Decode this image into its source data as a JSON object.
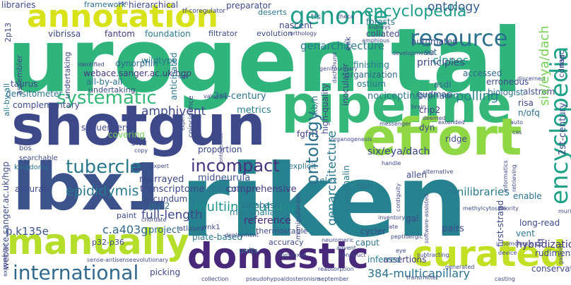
{
  "words": [
    {
      "text": "urogenital",
      "color": "#2fb47c",
      "weight": "bold"
    },
    {
      "text": "riken",
      "color": "#26828e",
      "weight": "bold"
    },
    {
      "text": "shotgun",
      "color": "#3e4989",
      "weight": "bold"
    },
    {
      "text": "lbx1",
      "color": "#3b528b",
      "weight": "bold"
    },
    {
      "text": "pipeline",
      "color": "#35b779",
      "weight": "bold"
    },
    {
      "text": "effort",
      "color": "#8fd744",
      "weight": "bold"
    },
    {
      "text": "annotation",
      "color": "#d8e219",
      "weight": "bold"
    },
    {
      "text": "domestic",
      "color": "#482878",
      "weight": "bold"
    },
    {
      "text": "manually",
      "color": "#b5de2b",
      "weight": "bold"
    },
    {
      "text": "curated",
      "color": "#c2df23",
      "weight": "bold"
    },
    {
      "text": "international",
      "color": "#31688e",
      "weight": "normal"
    },
    {
      "text": "genome",
      "color": "#1f9e89",
      "weight": "normal"
    },
    {
      "text": "resource",
      "color": "#2c728e",
      "weight": "normal"
    },
    {
      "text": "systematic",
      "color": "#35b779",
      "weight": "normal"
    },
    {
      "text": "tubercle",
      "color": "#2a788e",
      "weight": "normal"
    },
    {
      "text": "incompact",
      "color": "#46337e",
      "weight": "normal"
    },
    {
      "text": "encyclopedia",
      "color": "#1fa188",
      "weight": "normal"
    },
    {
      "text": "ontology",
      "color": "#2c728e",
      "weight": "normal"
    },
    {
      "text": "epididymis",
      "color": "#1f9e89",
      "weight": "normal"
    },
    {
      "text": "multiinstitutional",
      "color": "#365c8d",
      "weight": "normal"
    },
    {
      "text": "full-length",
      "color": "#2a788e",
      "weight": "normal"
    },
    {
      "text": "amphivent",
      "color": "#21918c",
      "weight": "normal"
    },
    {
      "text": "p.k135e",
      "color": "#3e4989",
      "weight": "normal"
    },
    {
      "text": "c.a403g",
      "color": "#3e4989",
      "weight": "normal"
    },
    {
      "text": "384-multicapillary",
      "color": "#3b528b",
      "weight": "normal"
    },
    {
      "text": "clones",
      "color": "#31688e",
      "weight": "normal"
    },
    {
      "text": "polling",
      "color": "#2c728e",
      "weight": "normal"
    },
    {
      "text": "hybridization",
      "color": "#1f9e89",
      "weight": "normal"
    },
    {
      "text": "minilibraries",
      "color": "#26828e",
      "weight": "normal"
    },
    {
      "text": "genarchitecture",
      "color": "#2a788e",
      "weight": "normal"
    },
    {
      "text": "six/eya/dach",
      "color": "#75d054",
      "weight": "normal"
    },
    {
      "text": "2st-century",
      "color": "#3e4989",
      "weight": "normal"
    },
    {
      "text": "metrics",
      "color": "#443983",
      "weight": "normal"
    },
    {
      "text": "nociceptin/orphanin",
      "color": "#2a788e",
      "weight": "normal"
    },
    {
      "text": "rearrayed",
      "color": "#2a788e",
      "weight": "normal"
    },
    {
      "text": "transcriptome",
      "color": "#3e4989",
      "weight": "normal"
    },
    {
      "text": "midneurula",
      "color": "#2c728e",
      "weight": "normal"
    },
    {
      "text": "consortium",
      "color": "#287d8e",
      "weight": "normal"
    },
    {
      "text": "comprehensive",
      "color": "#2a788e",
      "weight": "normal"
    },
    {
      "text": "reference",
      "color": "#3e4989",
      "weight": "normal"
    },
    {
      "text": "mammalian",
      "color": "#3e4989",
      "weight": "normal"
    },
    {
      "text": "database",
      "color": "#3b528b",
      "weight": "normal"
    },
    {
      "text": "plate-based",
      "color": "#2c728e",
      "weight": "normal"
    },
    {
      "text": "pairs",
      "color": "#443983",
      "weight": "normal"
    },
    {
      "text": "project",
      "color": "#482878",
      "weight": "normal"
    },
    {
      "text": "begun",
      "color": "#2a788e",
      "weight": "normal"
    },
    {
      "text": "accurate",
      "color": "#2c728e",
      "weight": "normal"
    },
    {
      "text": "complementary",
      "color": "#2a788e",
      "weight": "normal"
    },
    {
      "text": "densitometer",
      "color": "#3e4989",
      "weight": "normal"
    },
    {
      "text": "taurus",
      "color": "#31688e",
      "weight": "normal"
    },
    {
      "text": "webace.sanger.ac.uk/hgp",
      "color": "#3e4989",
      "weight": "normal"
    },
    {
      "text": "dynorphin",
      "color": "#3e4989",
      "weight": "normal"
    },
    {
      "text": "wildtype",
      "color": "#3e4989",
      "weight": "normal"
    },
    {
      "text": "anticipated",
      "color": "#2c728e",
      "weight": "normal"
    },
    {
      "text": "proportion",
      "color": "#3e4989",
      "weight": "normal"
    },
    {
      "text": "fgfrl1",
      "color": "#443983",
      "weight": "normal"
    },
    {
      "text": "situ",
      "color": "#31688e",
      "weight": "normal"
    },
    {
      "text": "kb/h",
      "color": "#2a788e",
      "weight": "normal"
    },
    {
      "text": "finishing",
      "color": "#2a788e",
      "weight": "normal"
    },
    {
      "text": "organization",
      "color": "#3e4989",
      "weight": "normal"
    },
    {
      "text": "accessed",
      "color": "#443983",
      "weight": "normal"
    },
    {
      "text": "principles",
      "color": "#3e4989",
      "weight": "normal"
    },
    {
      "text": "erroneous",
      "color": "#2c728e",
      "weight": "normal"
    },
    {
      "text": "biologist",
      "color": "#2a788e",
      "weight": "normal"
    },
    {
      "text": "alstrom",
      "color": "#31688e",
      "weight": "normal"
    },
    {
      "text": "risa",
      "color": "#31688e",
      "weight": "normal"
    },
    {
      "text": "n/ofq",
      "color": "#3e4989",
      "weight": "normal"
    },
    {
      "text": "crip2",
      "color": "#3e4989",
      "weight": "normal"
    },
    {
      "text": "gudmap",
      "color": "#2c728e",
      "weight": "normal"
    },
    {
      "text": "asdl",
      "color": "#3e4989",
      "weight": "normal"
    },
    {
      "text": "ostium",
      "color": "#3e4989",
      "weight": "normal"
    },
    {
      "text": "ridge",
      "color": "#2c728e",
      "weight": "normal"
    },
    {
      "text": "allen",
      "color": "#443983",
      "weight": "normal"
    },
    {
      "text": "enable",
      "color": "#3e4989",
      "weight": "normal"
    },
    {
      "text": "vent",
      "color": "#31688e",
      "weight": "normal"
    },
    {
      "text": "long-read",
      "color": "#2a788e",
      "weight": "normal"
    },
    {
      "text": "assertions",
      "color": "#3e4989",
      "weight": "normal"
    },
    {
      "text": "inferred",
      "color": "#3e4989",
      "weight": "normal"
    },
    {
      "text": "caput",
      "color": "#2c728e",
      "weight": "normal"
    },
    {
      "text": "cycler",
      "color": "#2a788e",
      "weight": "normal"
    },
    {
      "text": "gal",
      "color": "#3e4989",
      "weight": "normal"
    },
    {
      "text": "huri",
      "color": "#443983",
      "weight": "normal"
    },
    {
      "text": "dnas",
      "color": "#2a788e",
      "weight": "normal"
    },
    {
      "text": "grounded",
      "color": "#2c728e",
      "weight": "normal"
    },
    {
      "text": "e11.5",
      "color": "#3e4989",
      "weight": "normal"
    },
    {
      "text": "map",
      "color": "#3e4989",
      "weight": "normal"
    },
    {
      "text": "first-strand",
      "color": "#2c728e",
      "weight": "normal"
    },
    {
      "text": "enkephalin",
      "color": "#3e4989",
      "weight": "normal"
    },
    {
      "text": "high-quality",
      "color": "#2a788e",
      "weight": "normal"
    },
    {
      "text": "kingdoms",
      "color": "#3e4989",
      "weight": "normal"
    },
    {
      "text": "fantom",
      "color": "#2c728e",
      "weight": "normal"
    },
    {
      "text": "vibrissa",
      "color": "#443983",
      "weight": "normal"
    },
    {
      "text": "foundation",
      "color": "#3e4989",
      "weight": "normal"
    },
    {
      "text": "filtrator",
      "color": "#2a788e",
      "weight": "normal"
    },
    {
      "text": "evolution",
      "color": "#3e4989",
      "weight": "normal"
    },
    {
      "text": "nascent",
      "color": "#3e4989",
      "weight": "normal"
    },
    {
      "text": "tfs",
      "color": "#3e4989",
      "weight": "normal"
    },
    {
      "text": "collated",
      "color": "#2c728e",
      "weight": "normal"
    },
    {
      "text": "automated",
      "color": "#3e4989",
      "weight": "normal"
    },
    {
      "text": "deserts",
      "color": "#3e4989",
      "weight": "normal"
    },
    {
      "text": "forests",
      "color": "#2a788e",
      "weight": "normal"
    },
    {
      "text": "preparator",
      "color": "#2c728e",
      "weight": "normal"
    },
    {
      "text": "hierarchical",
      "color": "#3e4989",
      "weight": "normal"
    },
    {
      "text": "framework",
      "color": "#3e4989",
      "weight": "normal"
    },
    {
      "text": "libraries",
      "color": "#2c728e",
      "weight": "normal"
    },
    {
      "text": "assembler",
      "color": "#3e4989",
      "weight": "normal"
    },
    {
      "text": "all-by-all",
      "color": "#3e4989",
      "weight": "normal"
    },
    {
      "text": "undertaking",
      "color": "#2a788e",
      "weight": "normal"
    },
    {
      "text": "sequencers",
      "color": "#3e4989",
      "weight": "normal"
    },
    {
      "text": "covering",
      "color": "#2c728e",
      "weight": "normal"
    },
    {
      "text": "secundum",
      "color": "#3e4989",
      "weight": "normal"
    },
    {
      "text": "glyt2",
      "color": "#3e4989",
      "weight": "normal"
    },
    {
      "text": "paint",
      "color": "#75d054",
      "weight": "normal"
    },
    {
      "text": "p32-p36",
      "color": "#3e4989",
      "weight": "normal"
    },
    {
      "text": "picking",
      "color": "#2c728e",
      "weight": "normal"
    },
    {
      "text": "units",
      "color": "#3e4989",
      "weight": "normal"
    },
    {
      "text": "thermostable",
      "color": "#3e4989",
      "weight": "normal"
    },
    {
      "text": "accuracy",
      "color": "#3e4989",
      "weight": "normal"
    },
    {
      "text": "selex",
      "color": "#2c728e",
      "weight": "normal"
    },
    {
      "text": "dyn",
      "color": "#3e4989",
      "weight": "normal"
    },
    {
      "text": "explicit",
      "color": "#3e4989",
      "weight": "normal"
    },
    {
      "text": "bos",
      "color": "#2a788e",
      "weight": "normal"
    },
    {
      "text": "fq",
      "color": "#3e4989",
      "weight": "normal"
    },
    {
      "text": "conservation",
      "color": "#2c728e",
      "weight": "normal"
    },
    {
      "text": "rudiments",
      "color": "#3e4989",
      "weight": "normal"
    },
    {
      "text": "cdnas",
      "color": "#3e4989",
      "weight": "normal"
    },
    {
      "text": "mgc",
      "color": "#3e4989",
      "weight": "normal"
    },
    {
      "text": "enk",
      "color": "#3e4989",
      "weight": "normal"
    },
    {
      "text": "set",
      "color": "#3e4989",
      "weight": "normal"
    },
    {
      "text": "inoculator",
      "color": "#3e4989",
      "weight": "normal"
    },
    {
      "text": "2p13",
      "color": "#3e4989",
      "weight": "normal"
    },
    {
      "text": "searchable",
      "color": "#2c728e",
      "weight": "normal"
    },
    {
      "text": "atlases",
      "color": "#3e4989",
      "weight": "normal"
    },
    {
      "text": "wnk1",
      "color": "#3e4989",
      "weight": "normal"
    },
    {
      "text": "tf-coregulator",
      "color": "#3e4989",
      "weight": "normal"
    },
    {
      "text": "son",
      "color": "#3e4989",
      "weight": "normal"
    },
    {
      "text": "identified",
      "color": "#3e4989",
      "weight": "normal"
    },
    {
      "text": "ugt",
      "color": "#3e4989",
      "weight": "normal"
    },
    {
      "text": "theca",
      "color": "#3e4989",
      "weight": "normal"
    },
    {
      "text": "kidneys",
      "color": "#3e4989",
      "weight": "normal"
    },
    {
      "text": "amphious",
      "color": "#3e4989",
      "weight": "normal"
    },
    {
      "text": "orthology",
      "color": "#3e4989",
      "weight": "normal"
    },
    {
      "text": "genitourinary",
      "color": "#3e4989",
      "weight": "normal"
    },
    {
      "text": "dachshund",
      "color": "#3e4989",
      "weight": "normal"
    },
    {
      "text": "developmental",
      "color": "#3e4989",
      "weight": "normal"
    },
    {
      "text": "discerned",
      "color": "#3e4989",
      "weight": "normal"
    },
    {
      "text": "valuable",
      "color": "#3e4989",
      "weight": "normal"
    },
    {
      "text": "brain",
      "color": "#3e4989",
      "weight": "normal"
    },
    {
      "text": "messenger",
      "color": "#3e4989",
      "weight": "normal"
    },
    {
      "text": "extended",
      "color": "#3e4989",
      "weight": "normal"
    },
    {
      "text": "handle",
      "color": "#3e4989",
      "weight": "normal"
    },
    {
      "text": "alternative",
      "color": "#3e4989",
      "weight": "normal"
    },
    {
      "text": "informatics",
      "color": "#3e4989",
      "weight": "normal"
    },
    {
      "text": "retrieving",
      "color": "#3e4989",
      "weight": "normal"
    },
    {
      "text": "deemed",
      "color": "#3e4989",
      "weight": "normal"
    },
    {
      "text": "auto",
      "color": "#3e4989",
      "weight": "normal"
    },
    {
      "text": "cas",
      "color": "#3e4989",
      "weight": "normal"
    },
    {
      "text": "galanin",
      "color": "#3e4989",
      "weight": "normal"
    },
    {
      "text": "priority",
      "color": "#3e4989",
      "weight": "normal"
    },
    {
      "text": "murine",
      "color": "#3e4989",
      "weight": "normal"
    },
    {
      "text": "methylcytosine",
      "color": "#3e4989",
      "weight": "normal"
    },
    {
      "text": "inventory",
      "color": "#3e4989",
      "weight": "normal"
    },
    {
      "text": "late",
      "color": "#3e4989",
      "weight": "normal"
    },
    {
      "text": "peptidergic",
      "color": "#3e4989",
      "weight": "normal"
    },
    {
      "text": "advent",
      "color": "#3e4989",
      "weight": "normal"
    },
    {
      "text": "software-assisted",
      "color": "#3e4989",
      "weight": "normal"
    },
    {
      "text": "contiguity",
      "color": "#3e4989",
      "weight": "normal"
    },
    {
      "text": "homologue",
      "color": "#3e4989",
      "weight": "normal"
    },
    {
      "text": "device",
      "color": "#3e4989",
      "weight": "normal"
    },
    {
      "text": "casting",
      "color": "#3e4989",
      "weight": "normal"
    },
    {
      "text": "subtracting",
      "color": "#3e4989",
      "weight": "normal"
    },
    {
      "text": "generated",
      "color": "#3e4989",
      "weight": "normal"
    },
    {
      "text": "transmitter",
      "color": "#3e4989",
      "weight": "normal"
    },
    {
      "text": "september",
      "color": "#3e4989",
      "weight": "normal"
    },
    {
      "text": "construct",
      "color": "#3e4989",
      "weight": "normal"
    },
    {
      "text": "reabsorption",
      "color": "#3e4989",
      "weight": "normal"
    },
    {
      "text": "pseudohypoaldosteronism",
      "color": "#3e4989",
      "weight": "normal"
    },
    {
      "text": "collection",
      "color": "#3e4989",
      "weight": "normal"
    },
    {
      "text": "evolutionary",
      "color": "#3e4989",
      "weight": "normal"
    },
    {
      "text": "sense-antisense",
      "color": "#3e4989",
      "weight": "normal"
    },
    {
      "text": "exponential",
      "color": "#3e4989",
      "weight": "normal"
    },
    {
      "text": "chordate",
      "color": "#3e4989",
      "weight": "normal"
    },
    {
      "text": "deployment",
      "color": "#3e4989",
      "weight": "normal"
    },
    {
      "text": "manipulation",
      "color": "#3e4989",
      "weight": "normal"
    },
    {
      "text": "coincidence",
      "color": "#3e4989",
      "weight": "normal"
    },
    {
      "text": "expert",
      "color": "#3e4989",
      "weight": "normal"
    },
    {
      "text": "neuromeric",
      "color": "#3e4989",
      "weight": "normal"
    },
    {
      "text": "organogenesis",
      "color": "#3e4989",
      "weight": "normal"
    },
    {
      "text": "ontogenetic",
      "color": "#3e4989",
      "weight": "normal"
    },
    {
      "text": "hypoaxial",
      "color": "#3e4989",
      "weight": "normal"
    },
    {
      "text": "eye",
      "color": "#3e4989",
      "weight": "normal"
    },
    {
      "text": "copy",
      "color": "#3e4989",
      "weight": "normal"
    },
    {
      "text": "flanking",
      "color": "#3e4989",
      "weight": "normal"
    },
    {
      "text": "cut-off",
      "color": "#3e4989",
      "weight": "normal"
    },
    {
      "text": "intended",
      "color": "#3e4989",
      "weight": "normal"
    },
    {
      "text": "glycerol",
      "color": "#3e4989",
      "weight": "normal"
    }
  ]
}
